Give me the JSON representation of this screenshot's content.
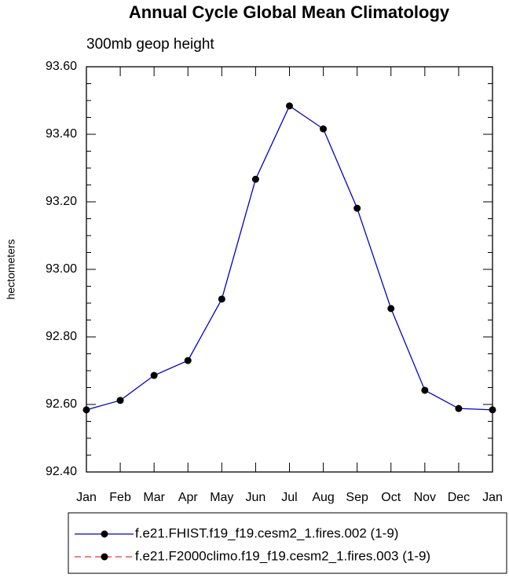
{
  "chart_data": {
    "type": "line",
    "title": "Annual Cycle Global Mean Climatology",
    "subtitle": "300mb geop height",
    "y_label": "hectometers",
    "categories": [
      "Jan",
      "Feb",
      "Mar",
      "Apr",
      "May",
      "Jun",
      "Jul",
      "Aug",
      "Sep",
      "Oct",
      "Nov",
      "Dec",
      "Jan"
    ],
    "series": [
      {
        "name": "f.e21.FHIST.f19_f19.cesm2_1.fires.002 (1-9)",
        "color": "#0000cc",
        "dash": false,
        "values": [
          92.584,
          92.612,
          92.686,
          92.73,
          92.912,
          93.267,
          93.484,
          93.416,
          93.181,
          92.884,
          92.642,
          92.588,
          92.584
        ]
      },
      {
        "name": "f.e21.F2000climo.f19_f19.cesm2_1.fires.003 (1-9)",
        "color": "#ee3333",
        "dash": true,
        "values": [
          null,
          null,
          null,
          null,
          null,
          null,
          null,
          null,
          null,
          null,
          null,
          null,
          null
        ]
      }
    ],
    "ylim": [
      92.4,
      93.6
    ],
    "yticks": [
      {
        "value": 92.4,
        "label": "92.40"
      },
      {
        "value": 92.6,
        "label": "92.60"
      },
      {
        "value": 92.8,
        "label": "92.80"
      },
      {
        "value": 93.0,
        "label": "93.00"
      },
      {
        "value": 93.2,
        "label": "93.20"
      },
      {
        "value": 93.4,
        "label": "93.40"
      },
      {
        "value": 93.6,
        "label": "93.60"
      }
    ],
    "grid": false,
    "legend": "bottom"
  }
}
